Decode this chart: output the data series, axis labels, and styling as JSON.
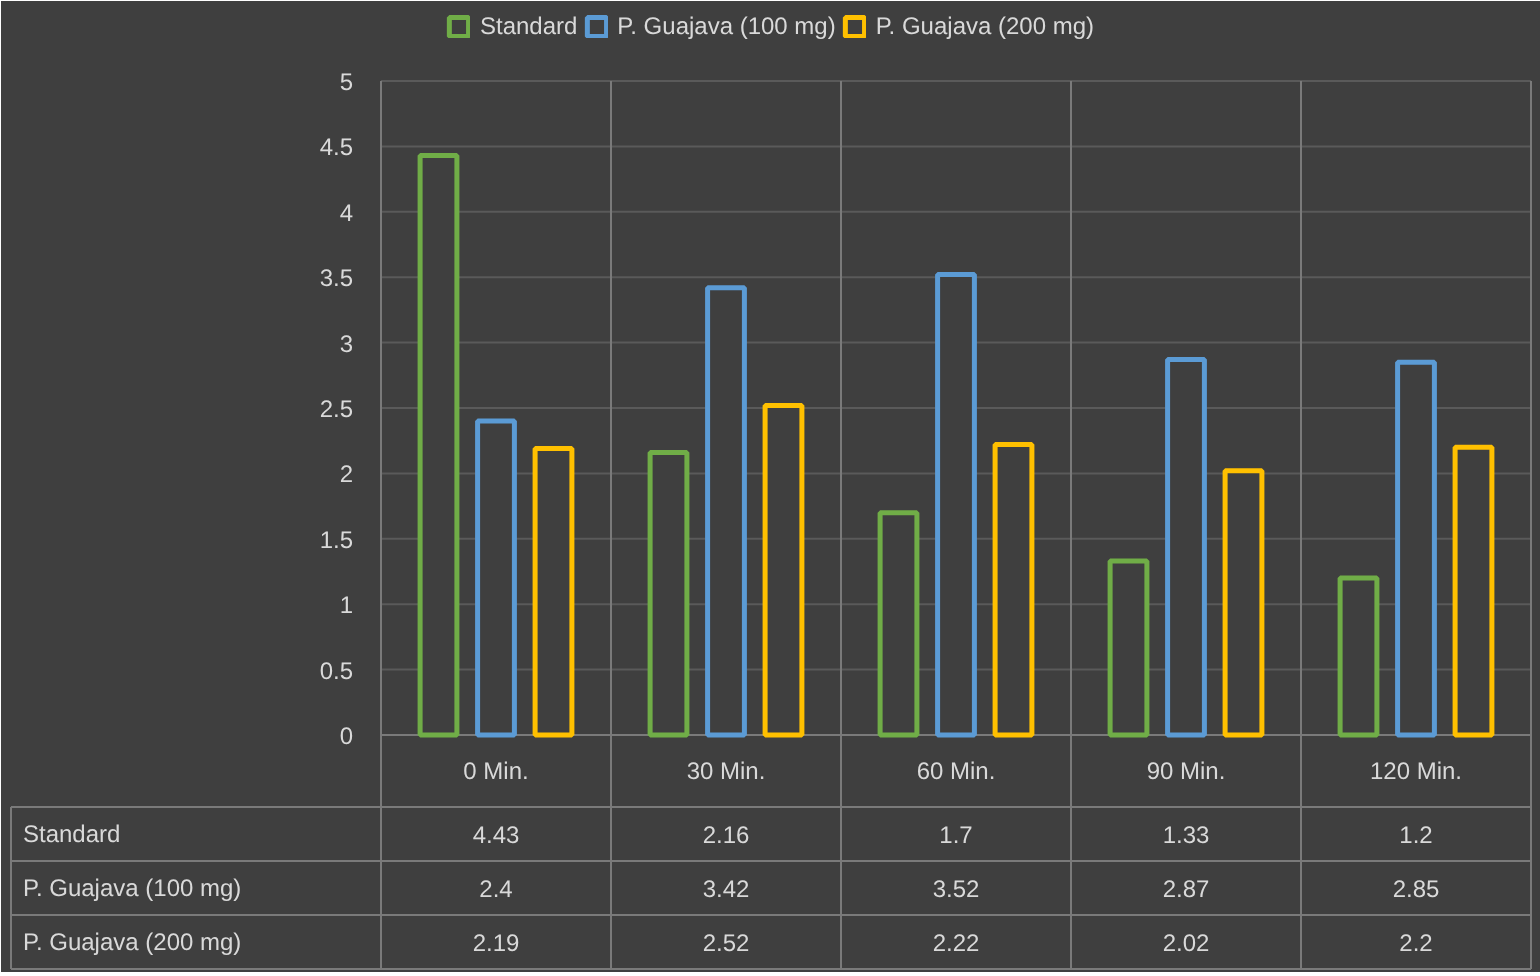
{
  "chart_data": {
    "type": "bar",
    "categories": [
      "0 Min.",
      "30 Min.",
      "60 Min.",
      "90 Min.",
      "120 Min."
    ],
    "series": [
      {
        "name": "Standard",
        "color": "#70ad47",
        "values": [
          4.43,
          2.16,
          1.7,
          1.33,
          1.2
        ]
      },
      {
        "name": "P. Guajava (100 mg)",
        "color": "#5b9bd5",
        "values": [
          2.4,
          3.42,
          3.52,
          2.87,
          2.85
        ]
      },
      {
        "name": "P. Guajava (200 mg)",
        "color": "#ffc000",
        "values": [
          2.19,
          2.52,
          2.22,
          2.02,
          2.2
        ]
      }
    ],
    "ylim": [
      0,
      5
    ],
    "yticks": [
      0,
      0.5,
      1,
      1.5,
      2,
      2.5,
      3,
      3.5,
      4,
      4.5,
      5
    ],
    "grid": "y",
    "legend": "top",
    "data_labels": true
  }
}
